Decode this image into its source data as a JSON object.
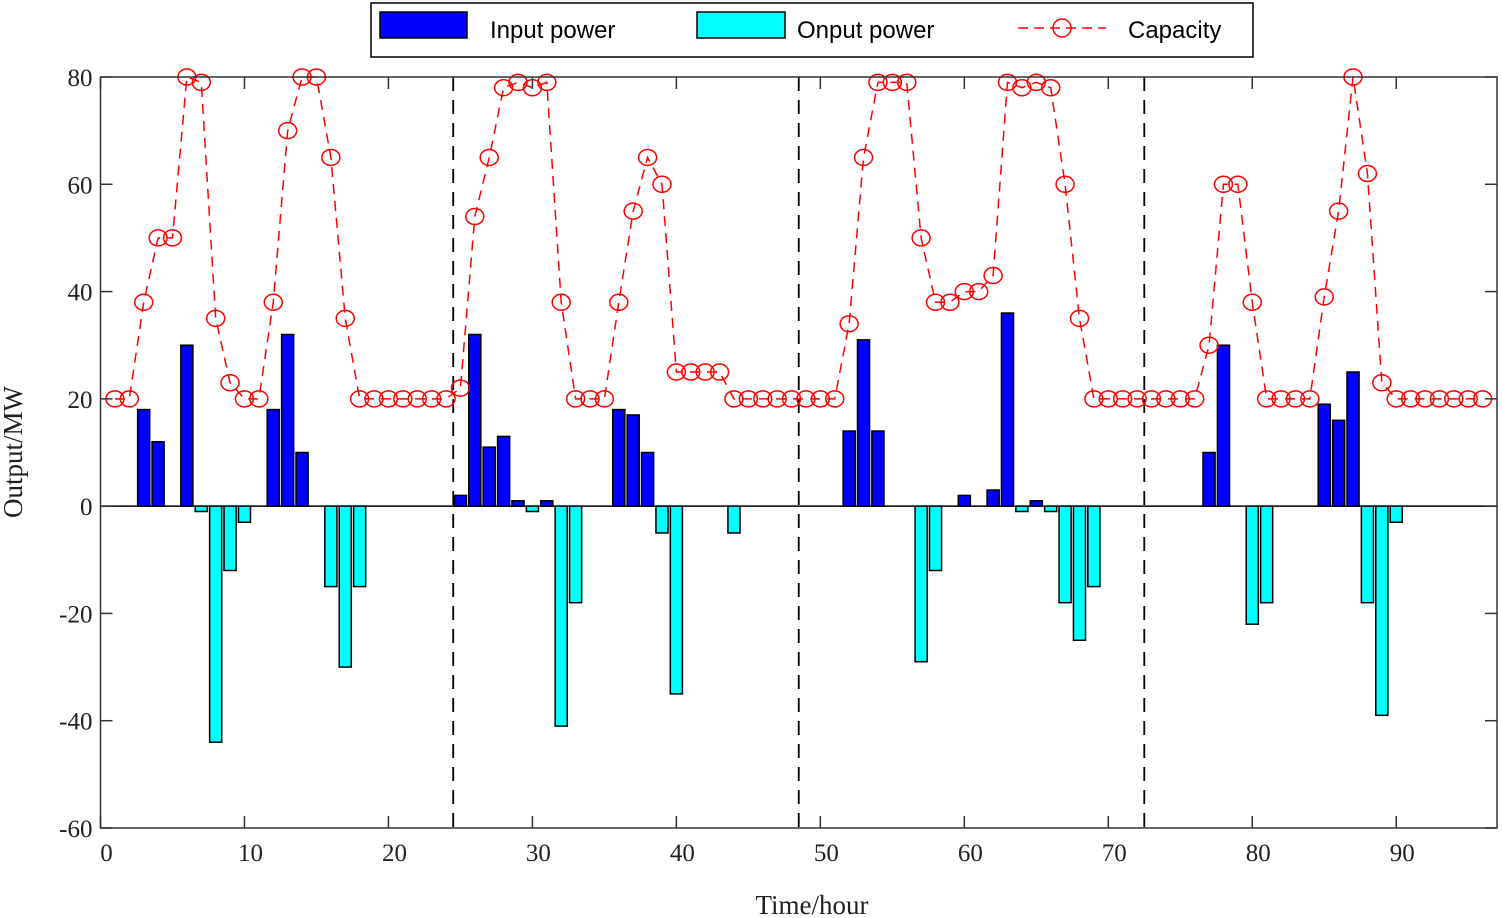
{
  "chart_data": {
    "type": "bar",
    "xlabel": "Time/hour",
    "ylabel": "Output/MW",
    "xlim": [
      0,
      97
    ],
    "ylim": [
      -60,
      80
    ],
    "xticks": [
      0,
      10,
      20,
      30,
      40,
      50,
      60,
      70,
      80,
      90
    ],
    "yticks": [
      80,
      60,
      40,
      20,
      0,
      -20,
      -40,
      -60
    ],
    "grid": false,
    "legend_position": "top-center-outside",
    "day_separators": [
      24.5,
      48.5,
      72.5
    ],
    "colors": {
      "input": "#0000ff",
      "output": "#00ffff",
      "capacity": "#ff0000"
    },
    "series": [
      {
        "name": "Input power",
        "kind": "bar",
        "points": [
          [
            3,
            18
          ],
          [
            4,
            12
          ],
          [
            6,
            30
          ],
          [
            12,
            18
          ],
          [
            13,
            32
          ],
          [
            14,
            10
          ],
          [
            25,
            2
          ],
          [
            26,
            32
          ],
          [
            27,
            11
          ],
          [
            28,
            13
          ],
          [
            29,
            1
          ],
          [
            31,
            1
          ],
          [
            36,
            18
          ],
          [
            37,
            17
          ],
          [
            38,
            10
          ],
          [
            52,
            14
          ],
          [
            53,
            31
          ],
          [
            54,
            14
          ],
          [
            60,
            2
          ],
          [
            62,
            3
          ],
          [
            63,
            36
          ],
          [
            65,
            1
          ],
          [
            77,
            10
          ],
          [
            78,
            30
          ],
          [
            85,
            19
          ],
          [
            86,
            16
          ],
          [
            87,
            25
          ]
        ]
      },
      {
        "name": "Onput power",
        "kind": "bar",
        "points": [
          [
            7,
            -1
          ],
          [
            8,
            -44
          ],
          [
            9,
            -12
          ],
          [
            10,
            -3
          ],
          [
            16,
            -15
          ],
          [
            17,
            -30
          ],
          [
            18,
            -15
          ],
          [
            30,
            -1
          ],
          [
            32,
            -41
          ],
          [
            33,
            -18
          ],
          [
            39,
            -5
          ],
          [
            40,
            -35
          ],
          [
            44,
            -5
          ],
          [
            57,
            -29
          ],
          [
            58,
            -12
          ],
          [
            64,
            -1
          ],
          [
            66,
            -1
          ],
          [
            67,
            -18
          ],
          [
            68,
            -25
          ],
          [
            69,
            -15
          ],
          [
            80,
            -22
          ],
          [
            81,
            -18
          ],
          [
            88,
            -18
          ],
          [
            89,
            -39
          ],
          [
            90,
            -3
          ]
        ]
      },
      {
        "name": "Capacity",
        "kind": "line",
        "x_start": 1,
        "values": [
          20,
          20,
          38,
          50,
          50,
          80,
          79,
          35,
          23,
          20,
          20,
          38,
          70,
          80,
          80,
          65,
          35,
          20,
          20,
          20,
          20,
          20,
          20,
          20,
          22,
          54,
          65,
          78,
          79,
          78,
          79,
          38,
          20,
          20,
          20,
          38,
          55,
          65,
          60,
          25,
          25,
          25,
          25,
          20,
          20,
          20,
          20,
          20,
          20,
          20,
          20,
          34,
          65,
          79,
          79,
          79,
          50,
          38,
          38,
          40,
          40,
          43,
          79,
          78,
          79,
          78,
          60,
          35,
          20,
          20,
          20,
          20,
          20,
          20,
          20,
          20,
          30,
          60,
          60,
          38,
          20,
          20,
          20,
          20,
          39,
          55,
          80,
          62,
          23,
          20,
          20,
          20,
          20,
          20,
          20,
          20
        ]
      }
    ]
  }
}
